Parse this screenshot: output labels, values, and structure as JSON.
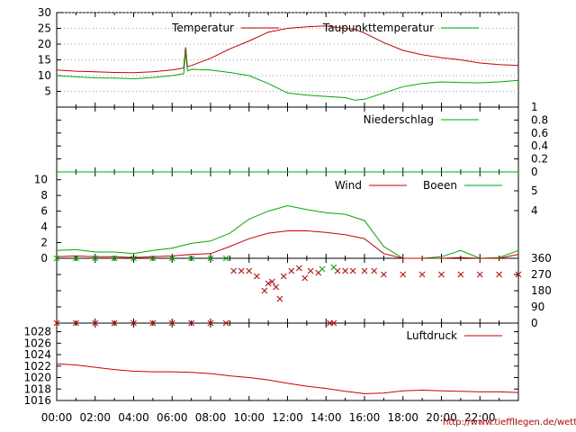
{
  "chart_data": [
    {
      "type": "line",
      "panel": "temperature",
      "ylim": [
        0,
        30
      ],
      "yticks": [
        "5",
        "10",
        "15",
        "20",
        "25",
        "30"
      ],
      "grid": true,
      "legend_position": "top-right",
      "x_hours": [
        0,
        1,
        2,
        3,
        4,
        5,
        6,
        6.6,
        6.7,
        6.8,
        7,
        8,
        9,
        10,
        11,
        12,
        13,
        14,
        15,
        15.5,
        16,
        17,
        18,
        19,
        20,
        21,
        22,
        23,
        24
      ],
      "series": [
        {
          "name": "Temperatur",
          "color": "#cc0000",
          "values": [
            11.8,
            11.4,
            11.2,
            11.0,
            10.9,
            11.2,
            11.8,
            12.4,
            19.0,
            12.8,
            13.2,
            15.5,
            18.5,
            21.0,
            23.8,
            25.0,
            25.5,
            25.8,
            25.0,
            24.7,
            23.5,
            20.5,
            18.0,
            16.6,
            15.7,
            15.0,
            14.0,
            13.5,
            13.2
          ]
        },
        {
          "name": "Taupunkttemperatur",
          "color": "#00aa00",
          "values": [
            10.0,
            9.6,
            9.3,
            9.2,
            9.0,
            9.4,
            10.0,
            10.6,
            17.5,
            11.5,
            12.0,
            11.8,
            11.0,
            10.0,
            7.5,
            4.5,
            3.8,
            3.4,
            3.0,
            2.2,
            2.5,
            4.5,
            6.5,
            7.5,
            8.0,
            7.8,
            7.7,
            8.0,
            8.5
          ]
        }
      ]
    },
    {
      "type": "line",
      "panel": "precipitation",
      "ylim": [
        0,
        1
      ],
      "yticks": [
        "0",
        "0.2",
        "0.4",
        "0.6",
        "0.8",
        "1"
      ],
      "legend_position": "top-right",
      "x_hours": [
        0,
        24
      ],
      "series": [
        {
          "name": "Niederschlag",
          "color": "#00aa00",
          "values": [
            0,
            0
          ]
        }
      ]
    },
    {
      "type": "line",
      "panel": "wind",
      "ylim": [
        0,
        11
      ],
      "yticks_left": [
        "0",
        "2",
        "4",
        "6",
        "8",
        "10"
      ],
      "yticks_right": [
        "4",
        "5"
      ],
      "legend_position": "top-right",
      "x_hours": [
        0,
        1,
        2,
        3,
        4,
        5,
        6,
        7,
        8,
        9,
        10,
        11,
        12,
        13,
        14,
        15,
        16,
        17,
        18,
        19,
        20,
        21,
        22,
        23,
        24
      ],
      "series": [
        {
          "name": "Wind",
          "color": "#cc0000",
          "values": [
            0.2,
            0.3,
            0.2,
            0.2,
            0.1,
            0.2,
            0.3,
            0.5,
            0.6,
            1.5,
            2.5,
            3.2,
            3.5,
            3.5,
            3.3,
            3.0,
            2.5,
            0.6,
            0,
            0,
            0,
            0.1,
            0,
            0,
            0.5
          ]
        },
        {
          "name": "Boeen",
          "color": "#00aa00",
          "values": [
            1.0,
            1.1,
            0.8,
            0.8,
            0.6,
            1.0,
            1.3,
            1.9,
            2.2,
            3.2,
            5.0,
            6.0,
            6.7,
            6.2,
            5.8,
            5.6,
            4.8,
            1.5,
            0,
            0,
            0.2,
            1.0,
            0,
            0.1,
            1.0
          ]
        }
      ]
    },
    {
      "type": "scatter",
      "panel": "wind_direction",
      "ylim": [
        0,
        360
      ],
      "yticks": [
        "0",
        "90",
        "180",
        "270",
        "360"
      ],
      "series": [
        {
          "name": "",
          "color": "#cc0000",
          "x": [
            0,
            1,
            2,
            3,
            4,
            5,
            6,
            7,
            8,
            8.8,
            9.2,
            9.6,
            10.0,
            10.4,
            10.8,
            11.0,
            11.2,
            11.4,
            11.6,
            11.8,
            12.2,
            12.6,
            12.9,
            13.2,
            13.6,
            14.2,
            14.4,
            14.6,
            15.0,
            15.4,
            16.0,
            16.5,
            17.0,
            18.0,
            19.0,
            20.0,
            21.0,
            22.0,
            23.0,
            24.0
          ],
          "y": [
            0,
            0,
            0,
            0,
            0,
            0,
            0,
            0,
            0,
            0,
            290,
            290,
            290,
            260,
            180,
            220,
            230,
            200,
            135,
            260,
            290,
            305,
            250,
            290,
            280,
            0,
            0,
            290,
            290,
            290,
            290,
            290,
            270,
            270,
            270,
            270,
            270,
            270,
            270,
            270
          ]
        },
        {
          "name": "",
          "color": "#00aa00",
          "x": [
            0,
            1,
            2,
            3,
            4,
            5,
            6,
            7,
            8,
            8.8,
            13.8,
            14.4
          ],
          "y": [
            360,
            360,
            360,
            360,
            360,
            360,
            360,
            360,
            360,
            360,
            300,
            310
          ]
        }
      ]
    },
    {
      "type": "line",
      "panel": "pressure",
      "ylim": [
        1016,
        1029.5
      ],
      "yticks": [
        "1016",
        "1018",
        "1020",
        "1022",
        "1024",
        "1026",
        "1028"
      ],
      "xlabels": [
        "00:00",
        "02:00",
        "04:00",
        "06:00",
        "08:00",
        "10:00",
        "12:00",
        "14:00",
        "16:00",
        "18:00",
        "20:00",
        "22:00"
      ],
      "legend_position": "top-right",
      "x_hours": [
        0,
        1,
        2,
        3,
        4,
        5,
        6,
        7,
        8,
        9,
        10,
        11,
        12,
        13,
        14,
        15,
        16,
        17,
        18,
        19,
        20,
        21,
        22,
        23,
        24
      ],
      "series": [
        {
          "name": "Luftdruck",
          "color": "#cc0000",
          "values": [
            1022.4,
            1022.2,
            1021.8,
            1021.4,
            1021.1,
            1021.0,
            1021.0,
            1020.9,
            1020.7,
            1020.3,
            1020.0,
            1019.6,
            1019.0,
            1018.5,
            1018.1,
            1017.6,
            1017.2,
            1017.3,
            1017.7,
            1017.8,
            1017.7,
            1017.6,
            1017.5,
            1017.5,
            1017.4
          ]
        }
      ]
    }
  ],
  "footer": {
    "url": "http://www.tiefflIegen.de/wetter/"
  }
}
